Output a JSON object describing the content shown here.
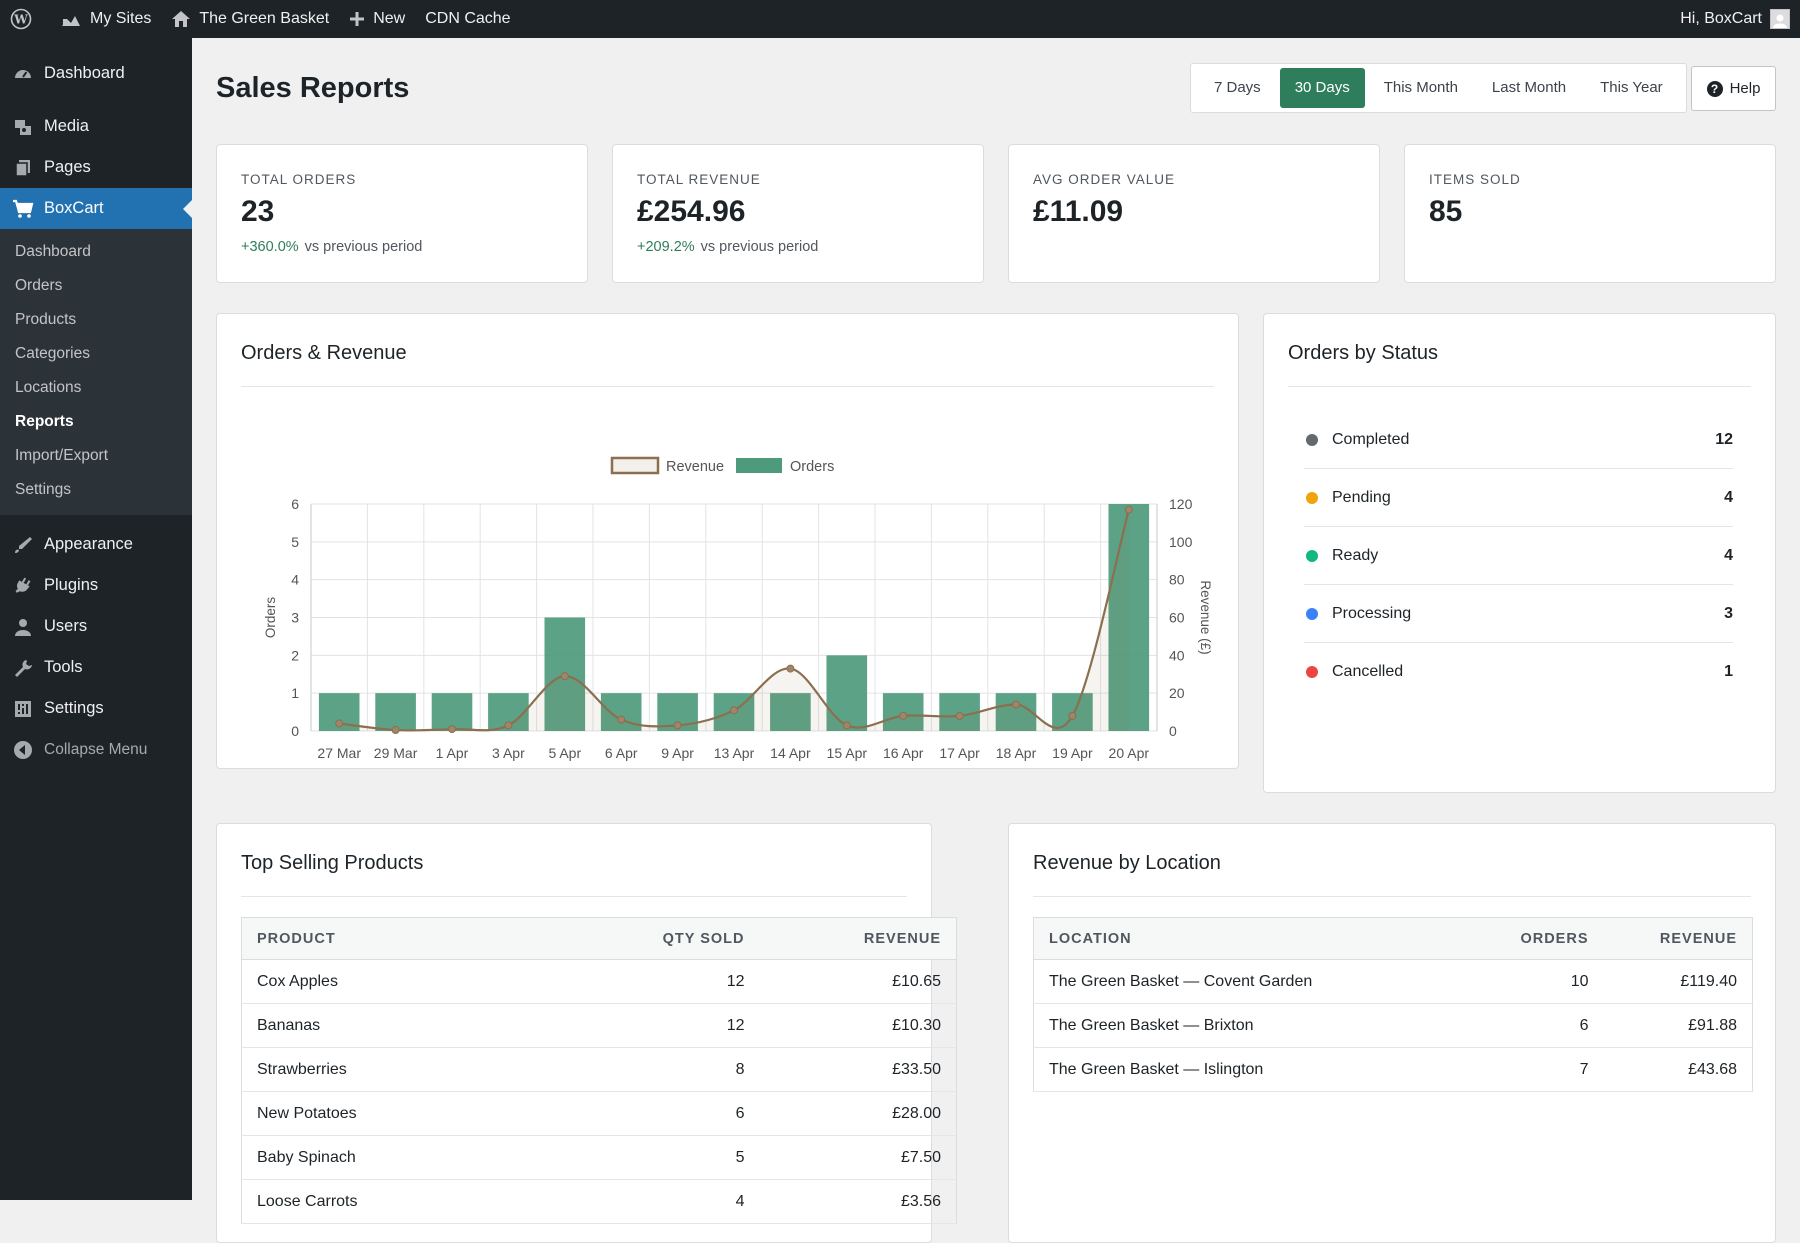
{
  "adminbar": {
    "my_sites": "My Sites",
    "site_name": "The Green Basket",
    "new": "New",
    "cdn_cache": "CDN Cache",
    "greeting": "Hi, BoxCart"
  },
  "sidebar": {
    "items": [
      {
        "label": "Dashboard",
        "icon": "dashboard-icon"
      },
      {
        "label": "Media",
        "icon": "media-icon"
      },
      {
        "label": "Pages",
        "icon": "pages-icon"
      },
      {
        "label": "BoxCart",
        "icon": "cart-icon"
      }
    ],
    "submenu": [
      "Dashboard",
      "Orders",
      "Products",
      "Categories",
      "Locations",
      "Reports",
      "Import/Export",
      "Settings"
    ],
    "lower_items": [
      {
        "label": "Appearance",
        "icon": "appearance-icon"
      },
      {
        "label": "Plugins",
        "icon": "plugins-icon"
      },
      {
        "label": "Users",
        "icon": "users-icon"
      },
      {
        "label": "Tools",
        "icon": "tools-icon"
      },
      {
        "label": "Settings",
        "icon": "settings-icon"
      }
    ],
    "collapse": "Collapse Menu"
  },
  "page": {
    "title": "Sales Reports",
    "ranges": [
      "7 Days",
      "30 Days",
      "This Month",
      "Last Month",
      "This Year"
    ],
    "active_range": "30 Days",
    "help": "Help"
  },
  "stats": [
    {
      "label": "TOTAL ORDERS",
      "value": "23",
      "delta": "+360.0%",
      "delta_text": "vs previous period"
    },
    {
      "label": "TOTAL REVENUE",
      "value": "£254.96",
      "delta": "+209.2%",
      "delta_text": "vs previous period"
    },
    {
      "label": "AVG ORDER VALUE",
      "value": "£11.09"
    },
    {
      "label": "ITEMS SOLD",
      "value": "85"
    }
  ],
  "orders_revenue": {
    "title": "Orders & Revenue"
  },
  "chart_data": {
    "type": "bar",
    "categories": [
      "27 Mar",
      "29 Mar",
      "1 Apr",
      "3 Apr",
      "5 Apr",
      "6 Apr",
      "9 Apr",
      "13 Apr",
      "14 Apr",
      "15 Apr",
      "16 Apr",
      "17 Apr",
      "18 Apr",
      "19 Apr",
      "20 Apr"
    ],
    "series": [
      {
        "name": "Orders",
        "type": "bar",
        "axis": "left",
        "color": "#4e9a7c",
        "values": [
          1,
          1,
          1,
          1,
          3,
          1,
          1,
          1,
          1,
          2,
          1,
          1,
          1,
          1,
          6
        ]
      },
      {
        "name": "Revenue",
        "type": "line",
        "axis": "right",
        "color": "#8b6f4e",
        "values": [
          4,
          0.5,
          1,
          3,
          29,
          6,
          3,
          11,
          33,
          3,
          8,
          8,
          14,
          8,
          117
        ]
      }
    ],
    "ylabel": "Orders",
    "y2label": "Revenue (£)",
    "ylim": [
      0,
      6
    ],
    "y2lim": [
      0,
      120
    ],
    "yticks": [
      0,
      1,
      2,
      3,
      4,
      5,
      6
    ],
    "y2ticks": [
      0,
      20,
      40,
      60,
      80,
      100,
      120
    ],
    "legend": "top-center",
    "grid": true
  },
  "orders_by_status": {
    "title": "Orders by Status",
    "rows": [
      {
        "label": "Completed",
        "count": "12",
        "color": "#646970"
      },
      {
        "label": "Pending",
        "count": "4",
        "color": "#f0a30a"
      },
      {
        "label": "Ready",
        "count": "4",
        "color": "#10b981"
      },
      {
        "label": "Processing",
        "count": "3",
        "color": "#3b82f6"
      },
      {
        "label": "Cancelled",
        "count": "1",
        "color": "#ef4444"
      }
    ]
  },
  "top_products": {
    "title": "Top Selling Products",
    "headers": [
      "PRODUCT",
      "QTY SOLD",
      "REVENUE"
    ],
    "rows": [
      {
        "product": "Cox Apples",
        "qty": "12",
        "revenue": "£10.65"
      },
      {
        "product": "Bananas",
        "qty": "12",
        "revenue": "£10.30"
      },
      {
        "product": "Strawberries",
        "qty": "8",
        "revenue": "£33.50"
      },
      {
        "product": "New Potatoes",
        "qty": "6",
        "revenue": "£28.00"
      },
      {
        "product": "Baby Spinach",
        "qty": "5",
        "revenue": "£7.50"
      },
      {
        "product": "Loose Carrots",
        "qty": "4",
        "revenue": "£3.56"
      }
    ]
  },
  "revenue_by_location": {
    "title": "Revenue by Location",
    "headers": [
      "LOCATION",
      "ORDERS",
      "REVENUE"
    ],
    "rows": [
      {
        "location": "The Green Basket — Covent Garden",
        "orders": "10",
        "revenue": "£119.40"
      },
      {
        "location": "The Green Basket — Brixton",
        "orders": "6",
        "revenue": "£91.88"
      },
      {
        "location": "The Green Basket — Islington",
        "orders": "7",
        "revenue": "£43.68"
      }
    ]
  }
}
